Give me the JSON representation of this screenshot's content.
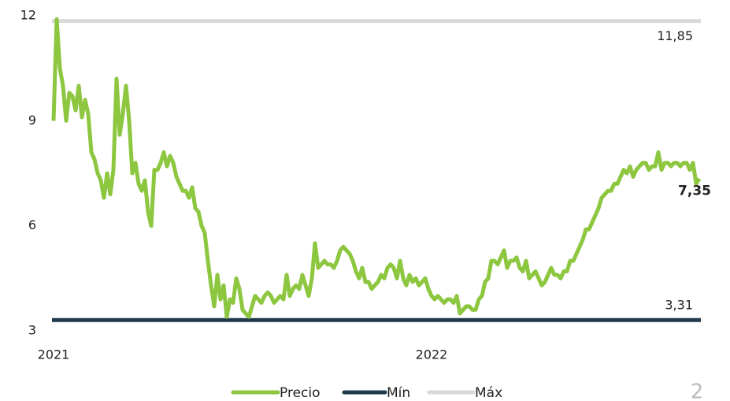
{
  "chart_data": {
    "type": "line",
    "categories": [
      "2021",
      null,
      null,
      null,
      null,
      null,
      null,
      null,
      null,
      null,
      null,
      null,
      null,
      null,
      null,
      null,
      null,
      null,
      null,
      null,
      null,
      null,
      null,
      null,
      null,
      null,
      null,
      null,
      null,
      null,
      null,
      null,
      null,
      null,
      null,
      null,
      null,
      null,
      null,
      null,
      null,
      null,
      null,
      null,
      null,
      null,
      null,
      null,
      null,
      null,
      null,
      null,
      null,
      null,
      null,
      null,
      null,
      null,
      null,
      null,
      null,
      null,
      null,
      null,
      null,
      null,
      null,
      null,
      null,
      null,
      null,
      null,
      null,
      null,
      null,
      null,
      null,
      null,
      null,
      null,
      null,
      null,
      null,
      null,
      null,
      null,
      null,
      null,
      null,
      null,
      null,
      null,
      null,
      null,
      null,
      null,
      null,
      null,
      null,
      null,
      null,
      null,
      null,
      null,
      null,
      null,
      null,
      null,
      null,
      null,
      null,
      null,
      null,
      null,
      null,
      null,
      null,
      null,
      null,
      null,
      "2022",
      null,
      null,
      null,
      null,
      null,
      null,
      null,
      null,
      null,
      null,
      null,
      null,
      null,
      null,
      null,
      null,
      null,
      null,
      null,
      null,
      null,
      null,
      null,
      null,
      null,
      null,
      null,
      null,
      null,
      null,
      null,
      null,
      null,
      null,
      null,
      null,
      null,
      null,
      null,
      null,
      null,
      null,
      null,
      null,
      null,
      null,
      null,
      null,
      null,
      null,
      null,
      null,
      null,
      null,
      null,
      null,
      null,
      null,
      null,
      null,
      null,
      null,
      null,
      null,
      null,
      null,
      null,
      null,
      null,
      null,
      null,
      null,
      null,
      null,
      null,
      null,
      null,
      null,
      null,
      null,
      null,
      null,
      null,
      null,
      null
    ],
    "series": [
      {
        "name": "Precio",
        "color": "#8dc63f",
        "last_label": "7,35",
        "values": [
          9.0,
          11.9,
          10.5,
          10.0,
          9.0,
          9.8,
          9.7,
          9.3,
          10.0,
          9.1,
          9.6,
          9.2,
          8.1,
          7.9,
          7.5,
          7.3,
          6.8,
          7.5,
          6.9,
          7.6,
          10.2,
          8.6,
          9.2,
          10.0,
          9.0,
          7.5,
          7.8,
          7.2,
          7.0,
          7.3,
          6.4,
          6.0,
          7.6,
          7.6,
          7.8,
          8.1,
          7.7,
          8.0,
          7.8,
          7.4,
          7.2,
          7.0,
          7.0,
          6.8,
          7.1,
          6.5,
          6.4,
          6.0,
          5.8,
          5.0,
          4.3,
          3.7,
          4.6,
          3.9,
          4.3,
          3.4,
          3.9,
          3.8,
          4.5,
          4.2,
          3.6,
          3.5,
          3.4,
          3.7,
          4.0,
          3.9,
          3.8,
          4.0,
          4.1,
          4.0,
          3.8,
          3.9,
          4.0,
          3.9,
          4.6,
          4.0,
          4.2,
          4.3,
          4.2,
          4.6,
          4.3,
          4.0,
          4.5,
          5.5,
          4.8,
          4.9,
          5.0,
          4.9,
          4.9,
          4.8,
          5.0,
          5.3,
          5.4,
          5.3,
          5.2,
          5.0,
          4.7,
          4.5,
          4.8,
          4.4,
          4.4,
          4.2,
          4.3,
          4.4,
          4.6,
          4.5,
          4.8,
          4.9,
          4.8,
          4.5,
          5.0,
          4.5,
          4.3,
          4.6,
          4.4,
          4.5,
          4.3,
          4.4,
          4.5,
          4.2,
          4.0,
          3.9,
          4.0,
          3.9,
          3.8,
          3.9,
          3.9,
          3.8,
          4.0,
          3.5,
          3.6,
          3.7,
          3.7,
          3.6,
          3.6,
          3.9,
          4.0,
          4.4,
          4.5,
          5.0,
          5.0,
          4.9,
          5.1,
          5.3,
          4.8,
          5.0,
          5.0,
          5.1,
          4.8,
          4.7,
          5.0,
          4.5,
          4.6,
          4.7,
          4.5,
          4.3,
          4.4,
          4.6,
          4.8,
          4.6,
          4.6,
          4.5,
          4.7,
          4.7,
          5.0,
          5.0,
          5.2,
          5.4,
          5.6,
          5.9,
          5.9,
          6.1,
          6.3,
          6.5,
          6.8,
          6.9,
          7.0,
          7.0,
          7.2,
          7.2,
          7.4,
          7.6,
          7.5,
          7.7,
          7.4,
          7.6,
          7.7,
          7.8,
          7.8,
          7.6,
          7.7,
          7.7,
          8.1,
          7.6,
          7.8,
          7.8,
          7.7,
          7.8,
          7.8,
          7.7,
          7.8,
          7.8,
          7.6,
          7.8,
          7.2,
          7.35
        ]
      },
      {
        "name": "Mín",
        "color": "#1f3a4d",
        "value": 3.31,
        "value_label": "3,31"
      },
      {
        "name": "Máx",
        "color": "#d9d9d9",
        "value": 11.85,
        "value_label": "11,85"
      }
    ],
    "ylim": [
      3,
      12
    ],
    "yticks": [
      3,
      6,
      9,
      12
    ],
    "grid": false,
    "legend": "bottom"
  },
  "page_number": "2"
}
